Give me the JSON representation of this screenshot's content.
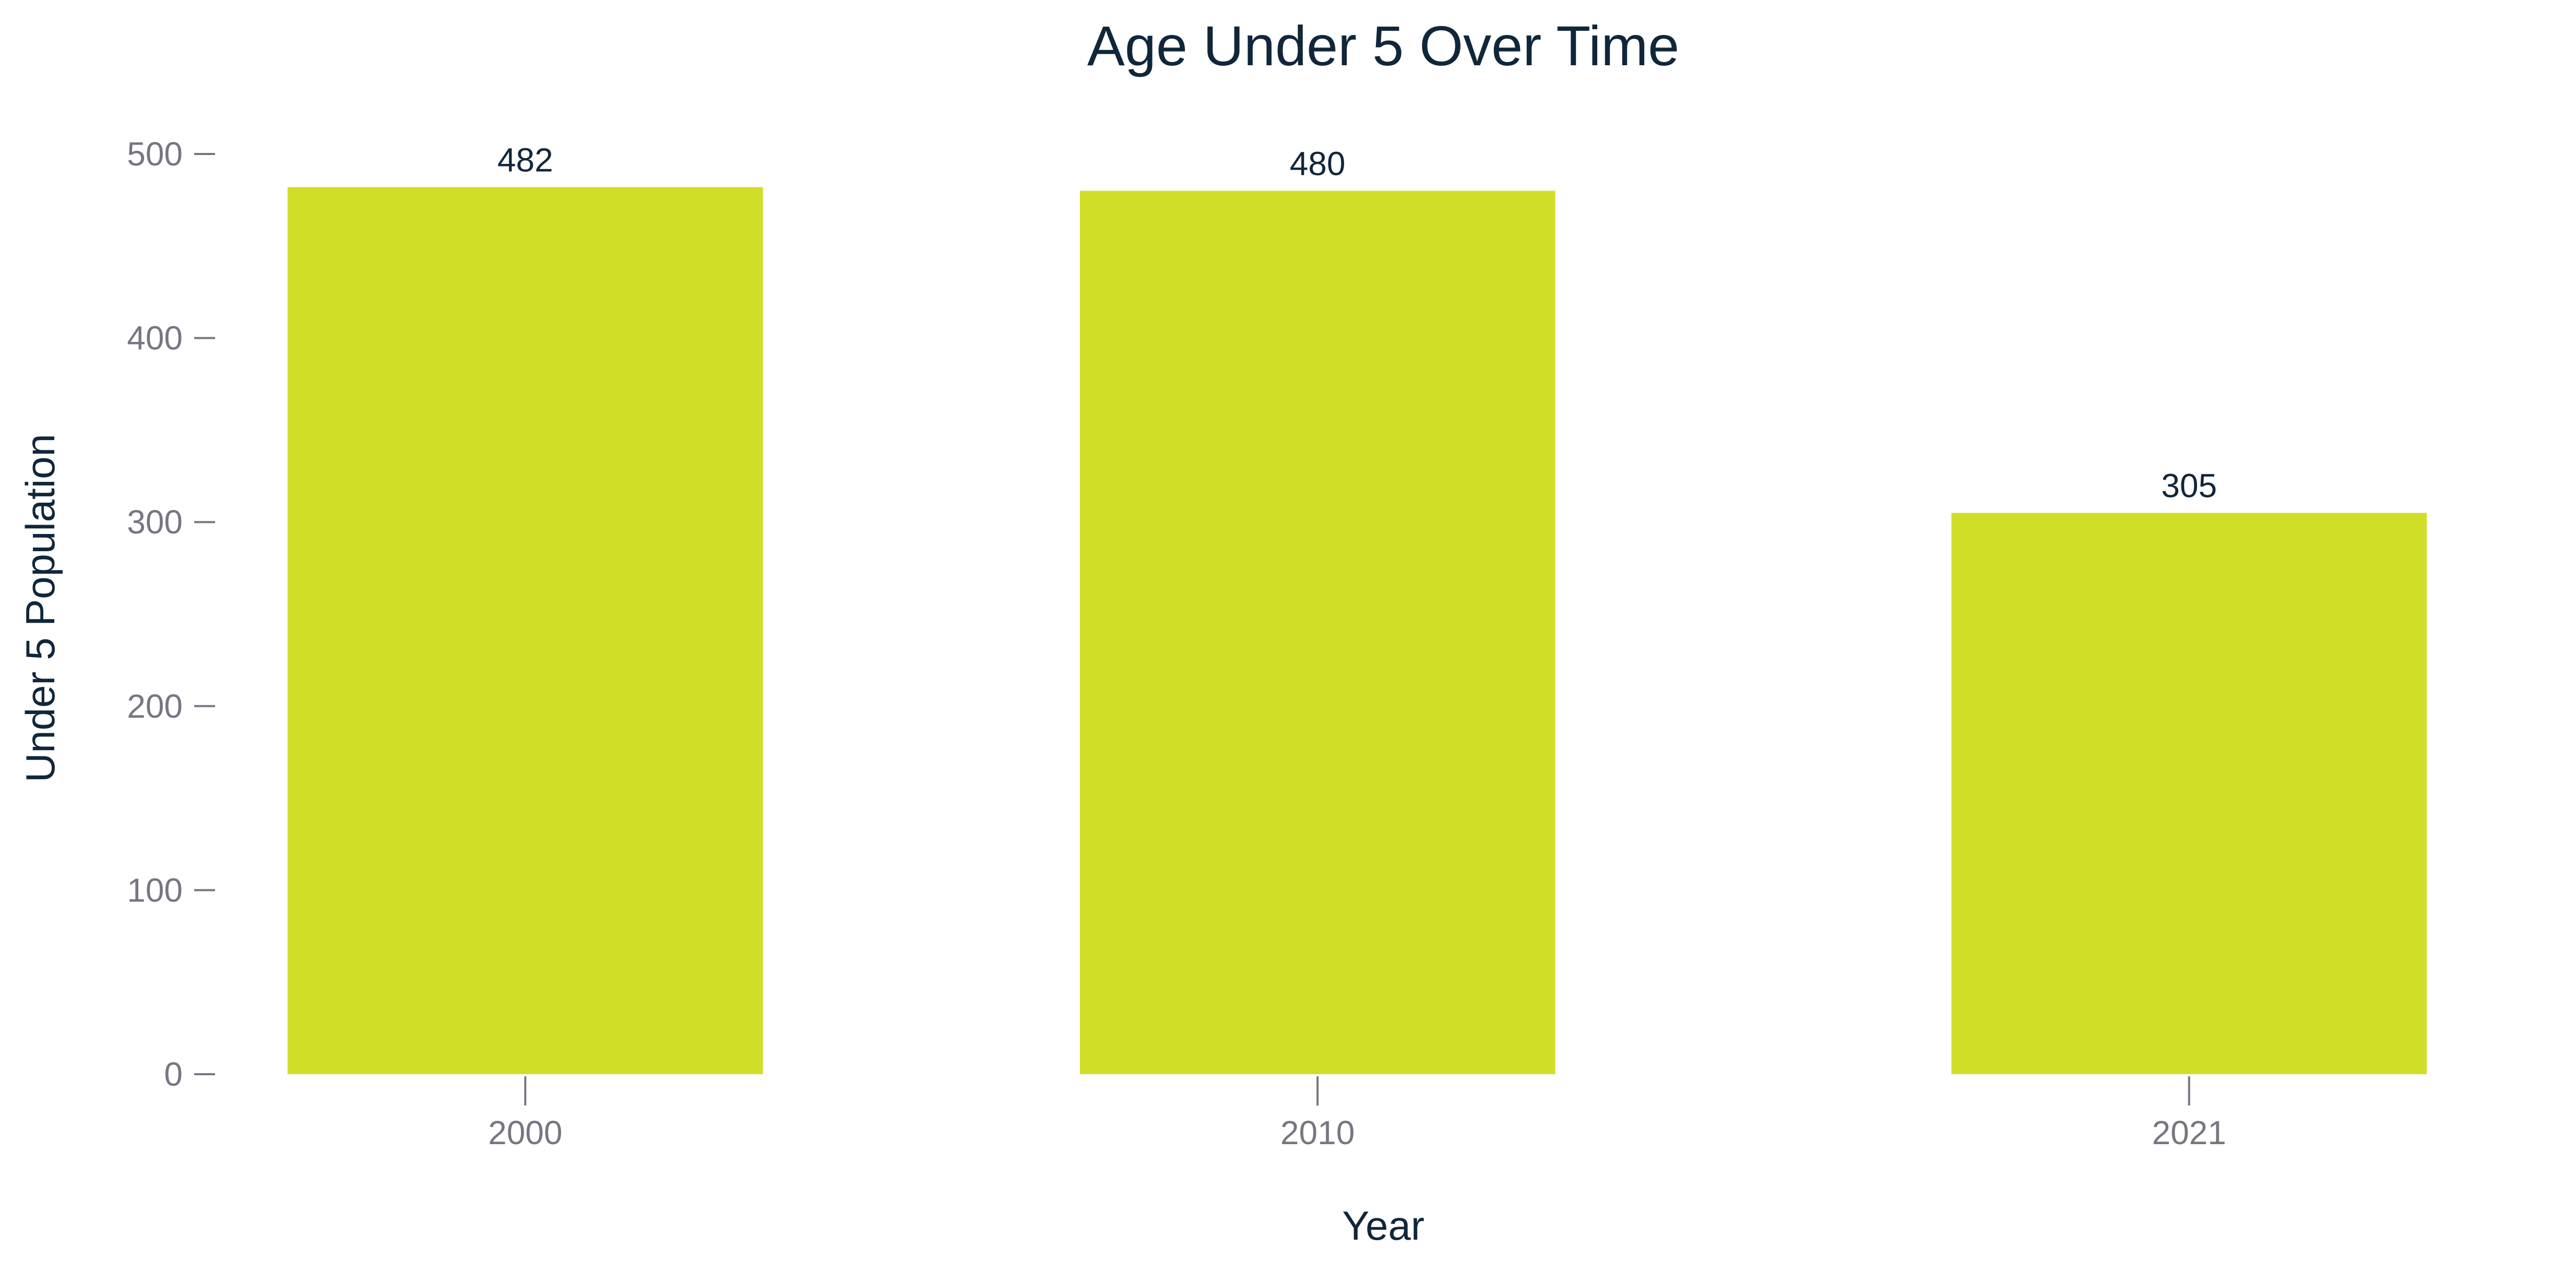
{
  "chart_data": {
    "type": "bar",
    "title": "Age Under 5 Over Time",
    "xlabel": "Year",
    "ylabel": "Under 5 Population",
    "categories": [
      "2000",
      "2010",
      "2021"
    ],
    "x": [
      2000,
      2010,
      2021
    ],
    "values": [
      482,
      480,
      305
    ],
    "data_labels": [
      "482",
      "480",
      "305"
    ],
    "ylim": [
      0,
      500
    ],
    "xlim": [
      1996.5,
      2024.5
    ],
    "y_ticks": [
      0,
      100,
      200,
      300,
      400,
      500
    ],
    "y_tick_labels": [
      "0",
      "100",
      "200",
      "300",
      "400",
      "500"
    ],
    "x_ticks": [
      2000,
      2010,
      2021
    ],
    "x_tick_labels": [
      "2000",
      "2010",
      "2021"
    ],
    "bar_width_years": 6,
    "grid": false,
    "legend": "none",
    "colors": {
      "bar": "#d1de28",
      "title": "#10263b",
      "axis_label": "#10263b",
      "tick": "#767683",
      "data_label": "#10263b",
      "background": "#ffffff"
    }
  }
}
